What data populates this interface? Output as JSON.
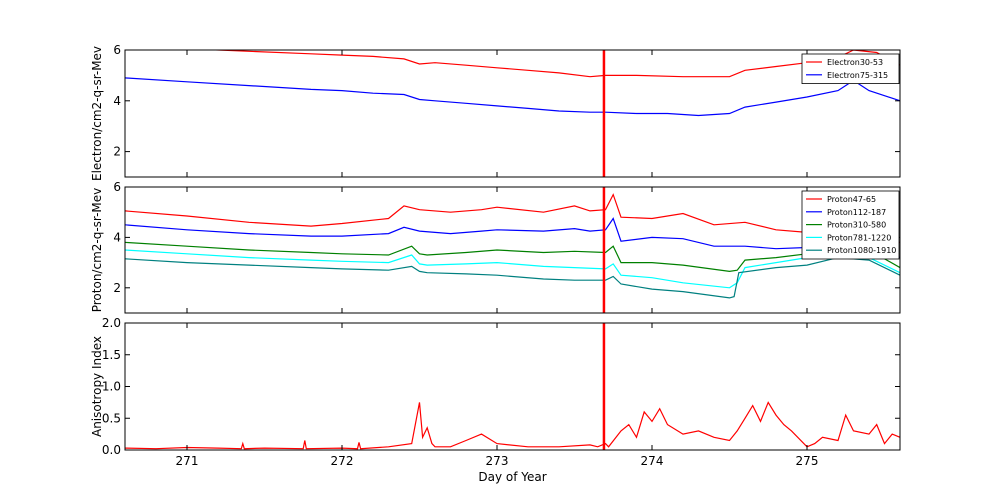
{
  "chart_data": {
    "type": "line",
    "xlabel": "Day of Year",
    "xlim": [
      270.6,
      275.6
    ],
    "x_ticks": [
      "271",
      "272",
      "273",
      "274",
      "275"
    ],
    "event_marker": {
      "x": 273.69,
      "color": "#ff0000"
    },
    "panels": [
      {
        "id": "electron",
        "ylabel": "Electron/cm2-q-sr-Mev",
        "ylim": [
          1,
          6
        ],
        "y_ticks": [
          "2",
          "4",
          "6"
        ],
        "legend_position": "top-right",
        "series": [
          {
            "name": "Electron30-53",
            "color": "#ff0000",
            "x": [
              270.6,
              271.0,
              271.4,
              271.8,
              272.0,
              272.2,
              272.4,
              272.5,
              272.6,
              272.8,
              273.0,
              273.2,
              273.4,
              273.6,
              273.7,
              273.9,
              274.2,
              274.5,
              274.6,
              274.8,
              275.0,
              275.2,
              275.3,
              275.45,
              275.6
            ],
            "values": [
              6.2,
              6.05,
              5.95,
              5.85,
              5.8,
              5.75,
              5.65,
              5.45,
              5.5,
              5.4,
              5.3,
              5.2,
              5.1,
              4.95,
              5.0,
              5.0,
              4.95,
              4.95,
              5.2,
              5.35,
              5.5,
              5.7,
              6.0,
              5.9,
              5.4
            ]
          },
          {
            "name": "Electron75-315",
            "color": "#0000ff",
            "x": [
              270.6,
              271.0,
              271.4,
              271.8,
              272.0,
              272.2,
              272.4,
              272.5,
              272.6,
              272.8,
              273.0,
              273.2,
              273.4,
              273.6,
              273.7,
              273.9,
              274.1,
              274.3,
              274.5,
              274.6,
              274.8,
              275.0,
              275.2,
              275.3,
              275.4,
              275.6
            ],
            "values": [
              4.9,
              4.75,
              4.6,
              4.45,
              4.4,
              4.3,
              4.25,
              4.05,
              4.0,
              3.9,
              3.8,
              3.7,
              3.6,
              3.55,
              3.55,
              3.5,
              3.5,
              3.42,
              3.5,
              3.75,
              3.95,
              4.15,
              4.4,
              4.8,
              4.4,
              4.0
            ]
          }
        ]
      },
      {
        "id": "proton",
        "ylabel": "Proton/cm2-q-sr-Mev",
        "ylim": [
          1,
          6
        ],
        "y_ticks": [
          "2",
          "4",
          "6"
        ],
        "legend_position": "top-right",
        "series": [
          {
            "name": "Proton47-65",
            "color": "#ff0000",
            "x": [
              270.6,
              271.0,
              271.4,
              271.8,
              272.0,
              272.3,
              272.4,
              272.5,
              272.7,
              272.9,
              273.0,
              273.3,
              273.5,
              273.6,
              273.7,
              273.75,
              273.8,
              274.0,
              274.2,
              274.4,
              274.6,
              274.8,
              275.0,
              275.2,
              275.4,
              275.6
            ],
            "values": [
              5.05,
              4.85,
              4.6,
              4.45,
              4.55,
              4.75,
              5.25,
              5.1,
              5.0,
              5.1,
              5.2,
              5.0,
              5.25,
              5.05,
              5.1,
              5.7,
              4.8,
              4.75,
              4.95,
              4.5,
              4.6,
              4.3,
              4.2,
              4.1,
              3.9,
              3.8
            ]
          },
          {
            "name": "Proton112-187",
            "color": "#0000ff",
            "x": [
              270.6,
              271.0,
              271.4,
              271.8,
              272.0,
              272.3,
              272.4,
              272.5,
              272.7,
              272.9,
              273.0,
              273.3,
              273.5,
              273.6,
              273.7,
              273.75,
              273.8,
              274.0,
              274.2,
              274.4,
              274.6,
              274.8,
              275.0,
              275.2,
              275.4,
              275.6
            ],
            "values": [
              4.5,
              4.3,
              4.15,
              4.05,
              4.05,
              4.15,
              4.4,
              4.25,
              4.15,
              4.25,
              4.3,
              4.25,
              4.35,
              4.25,
              4.3,
              4.75,
              3.85,
              4.0,
              3.95,
              3.65,
              3.65,
              3.55,
              3.6,
              3.8,
              3.7,
              3.2
            ]
          },
          {
            "name": "Proton310-580",
            "color": "#008000",
            "x": [
              270.6,
              271.0,
              271.4,
              271.8,
              272.0,
              272.3,
              272.45,
              272.5,
              272.55,
              272.8,
              273.0,
              273.3,
              273.5,
              273.7,
              273.75,
              273.8,
              274.0,
              274.2,
              274.5,
              274.55,
              274.6,
              274.8,
              275.0,
              275.2,
              275.4,
              275.6
            ],
            "values": [
              3.8,
              3.65,
              3.5,
              3.4,
              3.35,
              3.3,
              3.65,
              3.35,
              3.3,
              3.4,
              3.5,
              3.4,
              3.45,
              3.4,
              3.65,
              3.0,
              3.0,
              2.9,
              2.65,
              2.7,
              3.1,
              3.2,
              3.35,
              3.5,
              3.5,
              2.8
            ]
          },
          {
            "name": "Proton781-1220",
            "color": "#00ffff",
            "x": [
              270.6,
              271.0,
              271.4,
              271.8,
              272.0,
              272.3,
              272.45,
              272.5,
              272.55,
              272.8,
              273.0,
              273.3,
              273.5,
              273.7,
              273.75,
              273.8,
              274.0,
              274.2,
              274.5,
              274.55,
              274.6,
              274.8,
              275.0,
              275.2,
              275.4,
              275.6
            ],
            "values": [
              3.5,
              3.35,
              3.2,
              3.1,
              3.05,
              3.0,
              3.3,
              2.95,
              2.9,
              2.95,
              3.0,
              2.85,
              2.8,
              2.75,
              2.95,
              2.5,
              2.4,
              2.2,
              2.0,
              2.2,
              2.8,
              3.0,
              3.2,
              3.3,
              3.2,
              2.6
            ]
          },
          {
            "name": "Proton1080-1910",
            "color": "#008080",
            "x": [
              270.6,
              271.0,
              271.4,
              271.8,
              272.0,
              272.3,
              272.45,
              272.5,
              272.55,
              272.8,
              273.0,
              273.3,
              273.5,
              273.7,
              273.75,
              273.8,
              274.0,
              274.2,
              274.5,
              274.53,
              274.56,
              274.8,
              275.0,
              275.2,
              275.4,
              275.6
            ],
            "values": [
              3.15,
              3.0,
              2.9,
              2.8,
              2.75,
              2.7,
              2.85,
              2.65,
              2.6,
              2.55,
              2.5,
              2.35,
              2.3,
              2.3,
              2.45,
              2.15,
              1.95,
              1.85,
              1.6,
              1.65,
              2.6,
              2.8,
              2.9,
              3.2,
              3.1,
              2.5
            ]
          }
        ]
      },
      {
        "id": "anisotropy",
        "ylabel": "Anisotropy Index",
        "ylim": [
          0,
          2
        ],
        "y_ticks": [
          "0.0",
          "0.5",
          "1.0",
          "1.5",
          "2.0"
        ],
        "series": [
          {
            "color": "#ff0000",
            "x": [
              270.6,
              270.8,
              271.0,
              271.2,
              271.35,
              271.36,
              271.37,
              271.5,
              271.75,
              271.76,
              271.77,
              272.0,
              272.1,
              272.11,
              272.12,
              272.3,
              272.45,
              272.5,
              272.52,
              272.55,
              272.58,
              272.6,
              272.7,
              272.8,
              272.9,
              273.0,
              273.2,
              273.4,
              273.6,
              273.65,
              273.7,
              273.72,
              273.8,
              273.85,
              273.9,
              273.95,
              274.0,
              274.05,
              274.1,
              274.2,
              274.3,
              274.4,
              274.5,
              274.55,
              274.6,
              274.65,
              274.7,
              274.75,
              274.8,
              274.85,
              274.9,
              275.0,
              275.05,
              275.1,
              275.2,
              275.25,
              275.3,
              275.4,
              275.45,
              275.5,
              275.55,
              275.6
            ],
            "values": [
              0.03,
              0.02,
              0.04,
              0.03,
              0.02,
              0.1,
              0.02,
              0.03,
              0.02,
              0.15,
              0.02,
              0.03,
              0.02,
              0.12,
              0.02,
              0.05,
              0.1,
              0.75,
              0.2,
              0.35,
              0.1,
              0.05,
              0.05,
              0.15,
              0.25,
              0.1,
              0.05,
              0.05,
              0.08,
              0.05,
              0.1,
              0.05,
              0.3,
              0.4,
              0.2,
              0.6,
              0.45,
              0.65,
              0.4,
              0.25,
              0.3,
              0.2,
              0.15,
              0.3,
              0.5,
              0.7,
              0.45,
              0.75,
              0.55,
              0.4,
              0.3,
              0.05,
              0.1,
              0.2,
              0.15,
              0.55,
              0.3,
              0.25,
              0.4,
              0.1,
              0.25,
              0.2
            ]
          }
        ]
      }
    ]
  }
}
